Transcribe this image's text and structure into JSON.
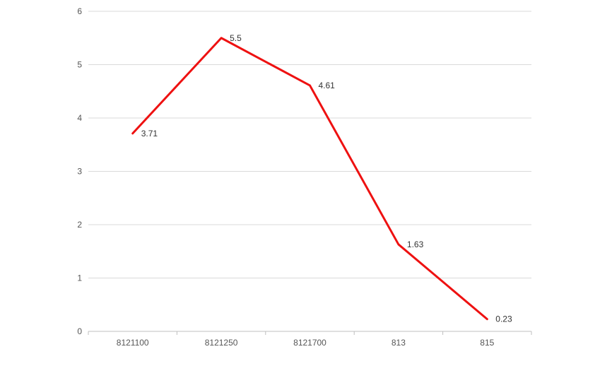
{
  "chart_data": {
    "type": "line",
    "categories": [
      "8121100",
      "8121250",
      "8121700",
      "813",
      "815"
    ],
    "series": [
      {
        "values": [
          3.71,
          5.5,
          4.61,
          1.63,
          0.23
        ]
      }
    ],
    "data_labels": [
      "3.71",
      "5.5",
      "4.61",
      "1.63",
      "0.23"
    ],
    "y_ticks": [
      "0",
      "1",
      "2",
      "3",
      "4",
      "5",
      "6"
    ],
    "ylim": [
      0,
      6
    ],
    "grid": true,
    "legend": "none",
    "line_color": "#ee1111"
  },
  "colors": {
    "grid": "#d9d9d9",
    "axis": "#bfbfbf"
  }
}
